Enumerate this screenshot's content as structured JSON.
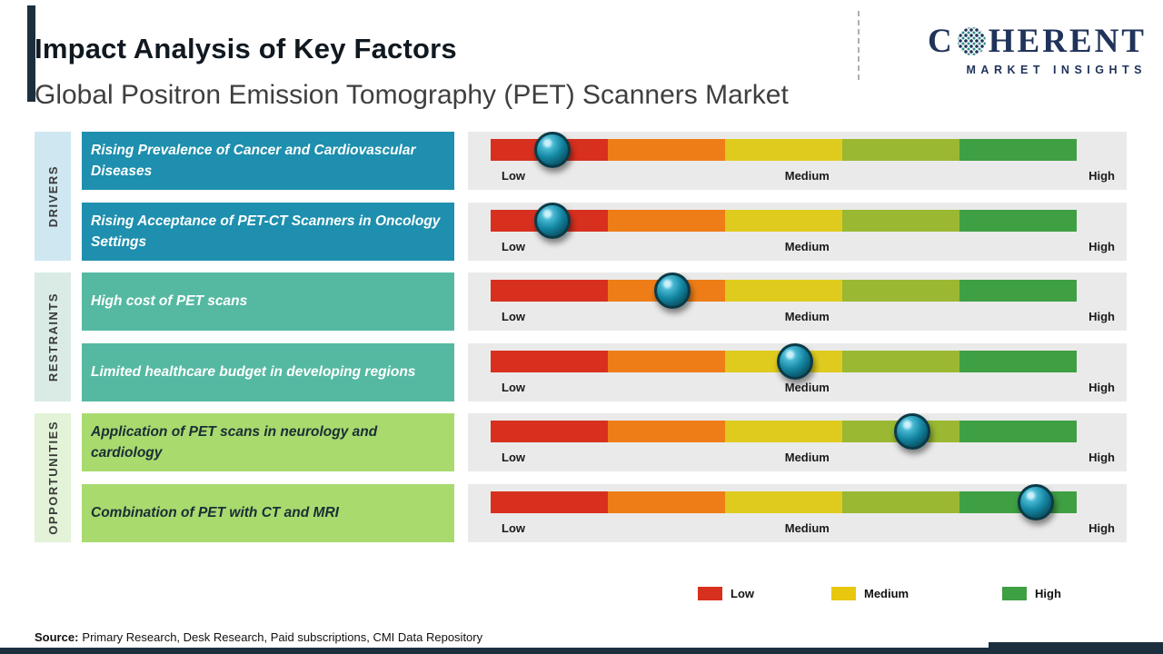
{
  "page": {
    "title": "Impact Analysis of Key Factors",
    "subtitle": "Global Positron Emission Tomography (PET) Scanners Market"
  },
  "logo": {
    "part1": "C",
    "part2": "HERENT",
    "line2": "MARKET INSIGHTS"
  },
  "scale": {
    "low": "Low",
    "medium": "Medium",
    "high": "High"
  },
  "groups": [
    {
      "label": "DRIVERS",
      "factors": [
        {
          "text": "Rising Prevalence of Cancer and Cardiovascular Diseases"
        },
        {
          "text": "Rising Acceptance of PET-CT Scanners in Oncology Settings"
        }
      ]
    },
    {
      "label": "RESTRAINTS",
      "factors": [
        {
          "text": "High cost of PET scans"
        },
        {
          "text": "Limited healthcare budget in developing regions"
        }
      ]
    },
    {
      "label": "OPPORTUNITIES",
      "factors": [
        {
          "text": "Application of PET scans in neurology and cardiology"
        },
        {
          "text": "Combination of PET with CT and MRI"
        }
      ]
    }
  ],
  "legend": {
    "items": [
      {
        "label": "Low",
        "color": "#d8301f"
      },
      {
        "label": "Medium",
        "color": "#e8c70f"
      },
      {
        "label": "High",
        "color": "#3f9f43"
      }
    ]
  },
  "source": {
    "label": "Source:",
    "text": "Primary Research, Desk Research, Paid subscriptions, CMI Data Repository"
  },
  "colors": {
    "accent_navy": "#1c2f3e",
    "logo_navy": "#20335a",
    "panel_gray": "#eaeaea"
  },
  "chart_data": {
    "type": "slider-impact",
    "title": "Impact Analysis of Key Factors",
    "subtitle": "Global Positron Emission Tomography (PET) Scanners Market",
    "scale": [
      "Low",
      "Medium",
      "High"
    ],
    "segment_colors": [
      "#d8301f",
      "#ee7d18",
      "#dfcb1e",
      "#9ab832",
      "#3f9f43"
    ],
    "positions": [
      0.105,
      0.105,
      0.31,
      0.52,
      0.72,
      0.93
    ],
    "rows": [
      {
        "group": "DRIVERS",
        "factor": "Rising Prevalence of Cancer and Cardiovascular Diseases",
        "impact_level": "Low",
        "position": 0.105
      },
      {
        "group": "DRIVERS",
        "factor": "Rising Acceptance of PET-CT Scanners in Oncology Settings",
        "impact_level": "Low",
        "position": 0.105
      },
      {
        "group": "RESTRAINTS",
        "factor": "High cost of PET scans",
        "impact_level": "Low-Medium",
        "position": 0.31
      },
      {
        "group": "RESTRAINTS",
        "factor": "Limited healthcare budget in developing regions",
        "impact_level": "Medium",
        "position": 0.52
      },
      {
        "group": "OPPORTUNITIES",
        "factor": "Application of PET scans in neurology and cardiology",
        "impact_level": "Medium-High",
        "position": 0.72
      },
      {
        "group": "OPPORTUNITIES",
        "factor": "Combination of PET with CT and MRI",
        "impact_level": "High",
        "position": 0.93
      }
    ]
  }
}
